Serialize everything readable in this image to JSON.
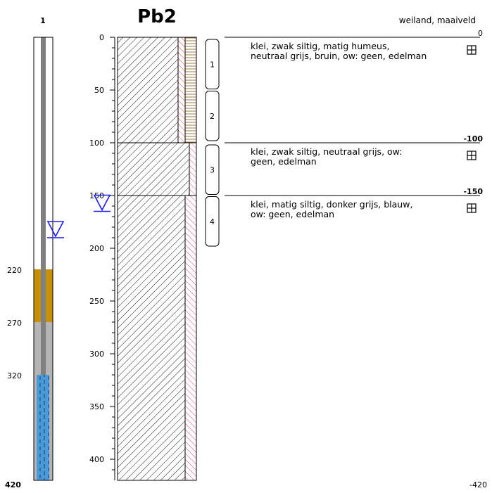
{
  "well": {
    "number": "1",
    "depth_labels": [
      "220",
      "270",
      "320",
      "420"
    ],
    "water_level_depth": 190,
    "layers": [
      {
        "from": 0,
        "to": 220,
        "fill": "#ffffff"
      },
      {
        "from": 220,
        "to": 270,
        "fill": "#c8900a"
      },
      {
        "from": 270,
        "to": 420,
        "fill": "#b4b4b4"
      }
    ],
    "screen": {
      "from": 320,
      "to": 420,
      "color": "#4a9ad6"
    },
    "pipe_color": "#808080"
  },
  "borehole": {
    "title": "Pb2",
    "surface": "weiland, maaiveld",
    "axis_ticks": [
      "0",
      "50",
      "100",
      "150",
      "200",
      "250",
      "300",
      "350",
      "400"
    ],
    "water_level_depth": 165,
    "samples": [
      {
        "label": "1",
        "from": 2,
        "to": 49
      },
      {
        "label": "2",
        "from": 51,
        "to": 98
      },
      {
        "label": "3",
        "from": 102,
        "to": 149
      },
      {
        "label": "4",
        "from": 151,
        "to": 198
      }
    ],
    "layers": [
      {
        "from": 0,
        "to": 100,
        "elevation": "0",
        "description": "klei, zwak siltig, matig humeus, neutraal grijs, bruin, ow: geen, edelman"
      },
      {
        "from": 100,
        "to": 150,
        "elevation": "-100",
        "description": "klei, zwak siltig, neutraal grijs, ow: geen, edelman"
      },
      {
        "from": 150,
        "to": 420,
        "elevation": "-150",
        "description": "klei, matig siltig, donker grijs, blauw, ow: geen, edelman"
      }
    ],
    "bottom_depth": "420",
    "bottom_elevation": "-420"
  },
  "colors": {
    "water_marker": "#1a1aff",
    "red_hatch": "#e0304a",
    "brown_hatch": "#9a6a2a",
    "line": "#000000"
  },
  "icons": {
    "layer_symbol": "grid-square-icon",
    "water_level": "water-level-triangle-icon"
  }
}
